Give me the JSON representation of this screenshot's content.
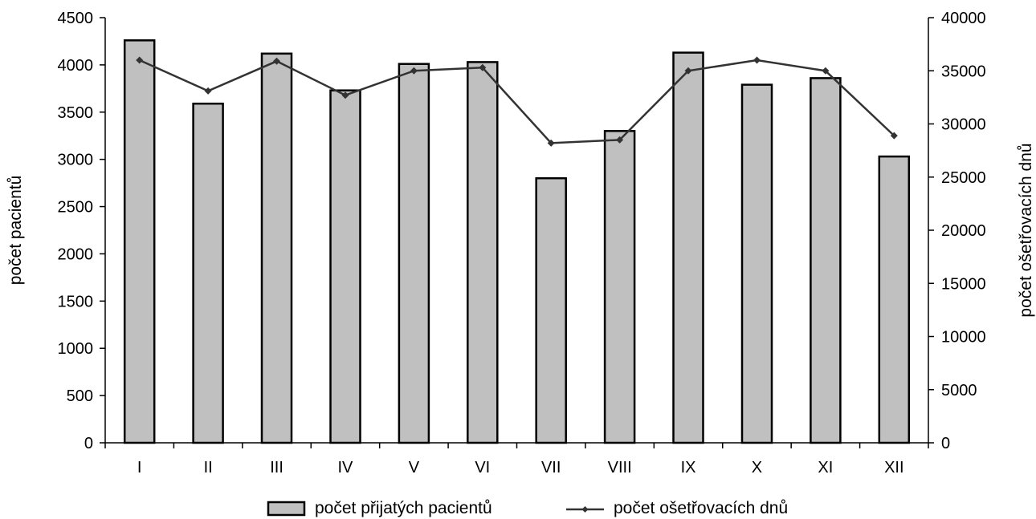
{
  "chart_data": {
    "type": "bar",
    "categories": [
      "I",
      "II",
      "III",
      "IV",
      "V",
      "VI",
      "VII",
      "VIII",
      "IX",
      "X",
      "XI",
      "XII"
    ],
    "series": [
      {
        "name": "počet přijatých pacientů",
        "kind": "bar",
        "axis": "left",
        "color": "#c0c0c0",
        "values": [
          4260,
          3590,
          4120,
          3730,
          4010,
          4030,
          2800,
          3300,
          4130,
          3790,
          3860,
          3030
        ]
      },
      {
        "name": "počet ošetřovacích dnů",
        "kind": "line",
        "axis": "right",
        "color": "#333333",
        "values": [
          36000,
          33100,
          35900,
          32700,
          35000,
          35300,
          28200,
          28500,
          35000,
          36000,
          35000,
          28900
        ]
      }
    ],
    "ylabel": "počet pacientů",
    "ylabel_right": "počet ošetřovacích dnů",
    "ylim": [
      0,
      4500
    ],
    "ylim_right": [
      0,
      40000
    ],
    "yticks": [
      0,
      500,
      1000,
      1500,
      2000,
      2500,
      3000,
      3500,
      4000,
      4500
    ],
    "yticks_right": [
      0,
      5000,
      10000,
      15000,
      20000,
      25000,
      30000,
      35000,
      40000
    ],
    "grid": false,
    "legend_position": "bottom"
  }
}
